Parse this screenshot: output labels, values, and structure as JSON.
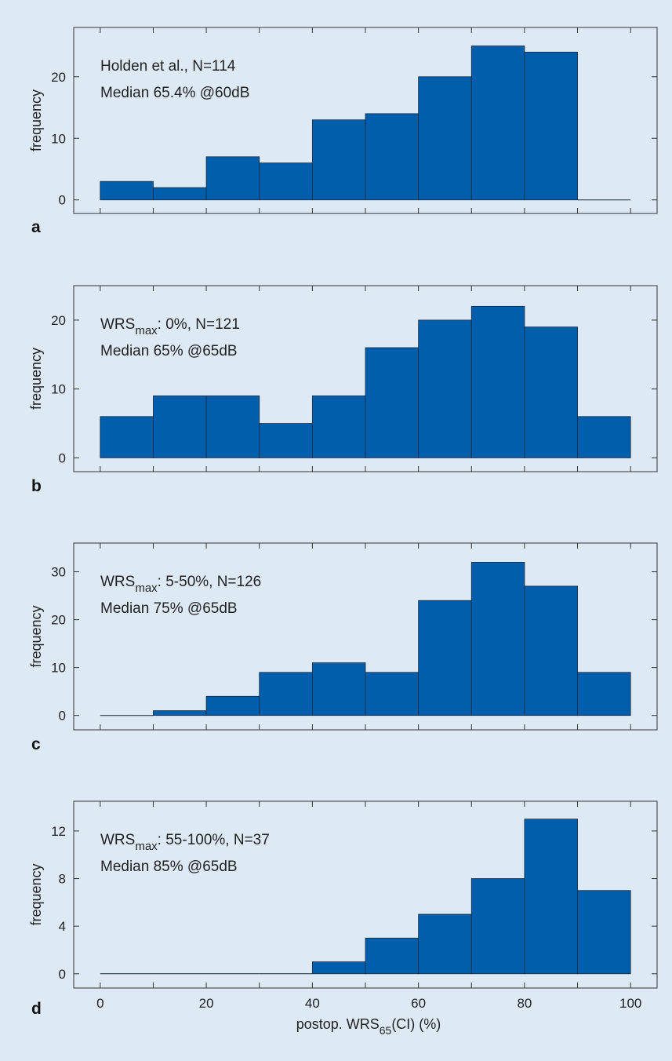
{
  "style": {
    "background": "#ddeaf6",
    "bar_fill": "#005eac",
    "bar_stroke": "#1a2a3a",
    "axis_color": "#333333",
    "plot_background": "#ddeaf6"
  },
  "shared": {
    "xlabel_pre": "postop. WRS",
    "xlabel_sub": "65",
    "xlabel_post": "(CI) (%)",
    "ylabel": "frequency",
    "xticks": [
      0,
      20,
      40,
      60,
      80,
      100
    ]
  },
  "chart_data": [
    {
      "type": "bar",
      "panel_label": "a",
      "annotation_line1": {
        "pre": "Holden et al., N=114",
        "sub": "",
        "post": ""
      },
      "annotation_line2": "Median 65.4% @60dB",
      "bin_edges": [
        0,
        10,
        20,
        30,
        40,
        50,
        60,
        70,
        80,
        90,
        100
      ],
      "values": [
        3,
        2,
        7,
        6,
        13,
        14,
        20,
        25,
        24,
        0
      ],
      "ylim": [
        -2.2,
        28
      ],
      "yticks": [
        0,
        10,
        20
      ],
      "xlim": [
        -5,
        105
      ],
      "ylabel": "frequency"
    },
    {
      "type": "bar",
      "panel_label": "b",
      "annotation_line1": {
        "pre": "WRS",
        "sub": "max",
        "post": ": 0%, N=121"
      },
      "annotation_line2": "Median 65% @65dB",
      "bin_edges": [
        0,
        10,
        20,
        30,
        40,
        50,
        60,
        70,
        80,
        90,
        100
      ],
      "values": [
        6,
        9,
        9,
        5,
        9,
        16,
        20,
        22,
        19,
        6
      ],
      "ylim": [
        -2,
        25
      ],
      "yticks": [
        0,
        10,
        20
      ],
      "xlim": [
        -5,
        105
      ],
      "ylabel": "frequency"
    },
    {
      "type": "bar",
      "panel_label": "c",
      "annotation_line1": {
        "pre": "WRS",
        "sub": "max",
        "post": ": 5-50%, N=126"
      },
      "annotation_line2": "Median 75% @65dB",
      "bin_edges": [
        0,
        10,
        20,
        30,
        40,
        50,
        60,
        70,
        80,
        90,
        100
      ],
      "values": [
        0,
        1,
        4,
        9,
        11,
        9,
        24,
        32,
        27,
        9
      ],
      "ylim": [
        -3,
        36
      ],
      "yticks": [
        0,
        10,
        20,
        30
      ],
      "xlim": [
        -5,
        105
      ],
      "ylabel": "frequency"
    },
    {
      "type": "bar",
      "panel_label": "d",
      "annotation_line1": {
        "pre": "WRS",
        "sub": "max",
        "post": ": 55-100%, N=37"
      },
      "annotation_line2": "Median 85% @65dB",
      "bin_edges": [
        0,
        10,
        20,
        30,
        40,
        50,
        60,
        70,
        80,
        90,
        100
      ],
      "values": [
        0,
        0,
        0,
        0,
        1,
        3,
        5,
        8,
        13,
        7
      ],
      "ylim": [
        -1.2,
        14.5
      ],
      "yticks": [
        0,
        4,
        8,
        12
      ],
      "xlim": [
        -5,
        105
      ],
      "ylabel": "frequency",
      "show_xticklabels": true
    }
  ]
}
